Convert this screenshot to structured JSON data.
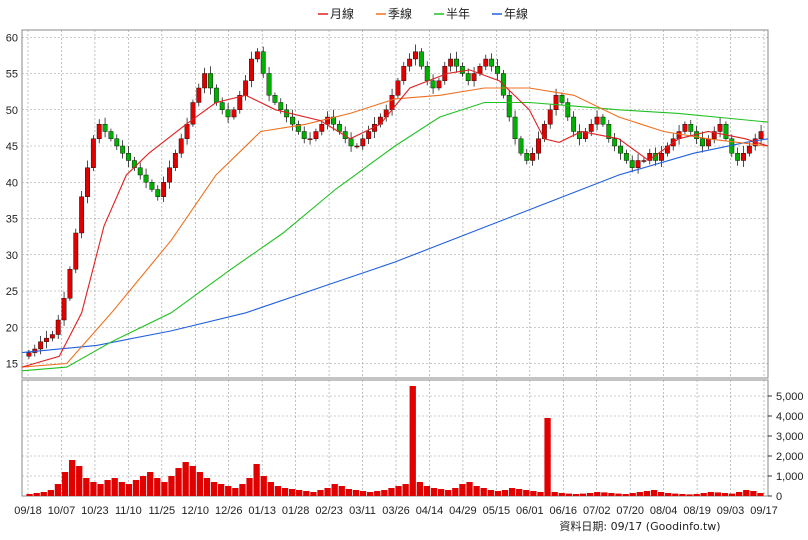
{
  "chart_data": {
    "type": "candlestick",
    "legend": [
      {
        "name": "月線",
        "color": "#e02020"
      },
      {
        "name": "季線",
        "color": "#f07020"
      },
      {
        "name": "半年",
        "color": "#20c020"
      },
      {
        "name": "年線",
        "color": "#2060e0"
      }
    ],
    "price_axis": {
      "ylim": [
        13,
        61
      ],
      "ticks": [
        15,
        20,
        25,
        30,
        35,
        40,
        45,
        50,
        55,
        60
      ]
    },
    "volume_axis": {
      "ylim": [
        0,
        5800
      ],
      "ticks": [
        "0",
        "1,000",
        "2,000",
        "3,000",
        "4,000",
        "5,000"
      ],
      "tick_values": [
        0,
        1000,
        2000,
        3000,
        4000,
        5000
      ]
    },
    "x_labels": [
      "09/18",
      "10/07",
      "10/23",
      "11/10",
      "11/25",
      "12/10",
      "12/26",
      "01/13",
      "01/28",
      "02/23",
      "03/11",
      "03/26",
      "04/14",
      "04/29",
      "05/15",
      "06/01",
      "06/16",
      "07/02",
      "07/20",
      "08/04",
      "08/19",
      "09/03",
      "09/17"
    ],
    "price_path": [
      16.5,
      17,
      18,
      18.5,
      19,
      21,
      24,
      28,
      33,
      38,
      42,
      46,
      48,
      47,
      46,
      45,
      44,
      43,
      42,
      41,
      40,
      39,
      38,
      40,
      42,
      44,
      46,
      48,
      51,
      53,
      55,
      53,
      51,
      50,
      49,
      50,
      52,
      54,
      57,
      58,
      55,
      52,
      51,
      50,
      49,
      48,
      47,
      46,
      46,
      47,
      48,
      49,
      48,
      47,
      46,
      45,
      45,
      46,
      47,
      48,
      49,
      50,
      52,
      54,
      56,
      57,
      58,
      56,
      54,
      53,
      54,
      56,
      57,
      56,
      55,
      54,
      55,
      56,
      57,
      56,
      55,
      52,
      49,
      46,
      44,
      43,
      44,
      46,
      48,
      50,
      52,
      51,
      49,
      47,
      46,
      47,
      48,
      49,
      48,
      46,
      45,
      44,
      43,
      42,
      43,
      43,
      44,
      43,
      44,
      45,
      46,
      47,
      48,
      47,
      46,
      45,
      46,
      47,
      48,
      46,
      44,
      43,
      44,
      45,
      46,
      47
    ],
    "volume_path": [
      100,
      150,
      200,
      300,
      600,
      1200,
      1800,
      1500,
      900,
      700,
      600,
      800,
      900,
      700,
      600,
      800,
      1000,
      1200,
      900,
      700,
      1000,
      1400,
      1700,
      1500,
      1200,
      900,
      700,
      600,
      500,
      400,
      600,
      900,
      1600,
      1000,
      700,
      500,
      400,
      350,
      300,
      250,
      200,
      300,
      400,
      600,
      500,
      350,
      300,
      250,
      200,
      250,
      300,
      400,
      500,
      600,
      5500,
      700,
      500,
      400,
      350,
      300,
      400,
      600,
      700,
      500,
      400,
      300,
      250,
      300,
      400,
      350,
      300,
      250,
      200,
      3900,
      200,
      150,
      120,
      100,
      120,
      150,
      200,
      180,
      150,
      120,
      100,
      150,
      200,
      250,
      300,
      200,
      150,
      120,
      100,
      80,
      100,
      150,
      200,
      180,
      150,
      120,
      200,
      300,
      250,
      150
    ],
    "ma_month": [
      [
        0,
        14.5
      ],
      [
        0.05,
        16
      ],
      [
        0.08,
        22
      ],
      [
        0.11,
        34
      ],
      [
        0.14,
        41
      ],
      [
        0.17,
        44
      ],
      [
        0.22,
        48
      ],
      [
        0.26,
        51
      ],
      [
        0.3,
        52
      ],
      [
        0.34,
        50
      ],
      [
        0.4,
        48.5
      ],
      [
        0.44,
        46
      ],
      [
        0.48,
        48
      ],
      [
        0.52,
        53
      ],
      [
        0.57,
        55
      ],
      [
        0.6,
        55.5
      ],
      [
        0.64,
        54
      ],
      [
        0.68,
        50
      ],
      [
        0.7,
        46
      ],
      [
        0.72,
        45.5
      ],
      [
        0.75,
        47
      ],
      [
        0.8,
        46
      ],
      [
        0.84,
        43
      ],
      [
        0.88,
        46
      ],
      [
        0.92,
        47
      ],
      [
        0.97,
        46
      ],
      [
        1,
        45
      ]
    ],
    "ma_quarter": [
      [
        0,
        14.5
      ],
      [
        0.06,
        15
      ],
      [
        0.12,
        22
      ],
      [
        0.2,
        32
      ],
      [
        0.26,
        41
      ],
      [
        0.32,
        47
      ],
      [
        0.38,
        48
      ],
      [
        0.44,
        49.5
      ],
      [
        0.5,
        51.5
      ],
      [
        0.56,
        52
      ],
      [
        0.62,
        53
      ],
      [
        0.68,
        53
      ],
      [
        0.74,
        52
      ],
      [
        0.8,
        49
      ],
      [
        0.86,
        47
      ],
      [
        0.92,
        46
      ],
      [
        1,
        45
      ]
    ],
    "ma_half": [
      [
        0,
        14
      ],
      [
        0.06,
        14.5
      ],
      [
        0.12,
        18
      ],
      [
        0.2,
        22
      ],
      [
        0.28,
        28
      ],
      [
        0.35,
        33
      ],
      [
        0.42,
        39
      ],
      [
        0.5,
        45
      ],
      [
        0.56,
        49
      ],
      [
        0.62,
        51
      ],
      [
        0.68,
        51
      ],
      [
        0.74,
        50.5
      ],
      [
        0.8,
        50
      ],
      [
        0.88,
        49.5
      ],
      [
        0.95,
        48.8
      ],
      [
        1,
        48.3
      ]
    ],
    "ma_year": [
      [
        0,
        16.5
      ],
      [
        0.1,
        17.5
      ],
      [
        0.2,
        19.5
      ],
      [
        0.3,
        22
      ],
      [
        0.4,
        25.5
      ],
      [
        0.5,
        29
      ],
      [
        0.6,
        33
      ],
      [
        0.7,
        37
      ],
      [
        0.8,
        41
      ],
      [
        0.9,
        44
      ],
      [
        0.97,
        45.5
      ],
      [
        1,
        46
      ]
    ],
    "footer": "資料日期: 09/17 (Goodinfo.tw)"
  }
}
